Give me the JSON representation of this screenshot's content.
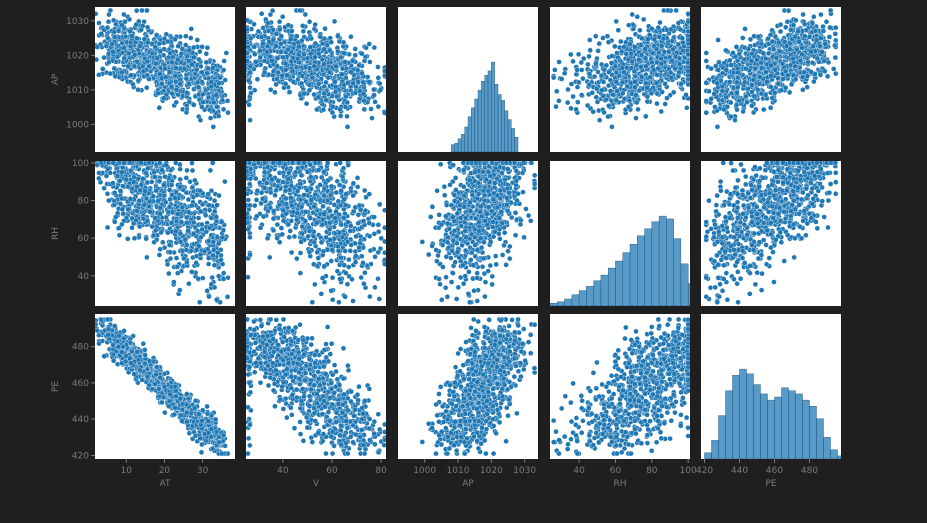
{
  "figure": {
    "background": "#1f1f1f",
    "panel_background": "#ffffff",
    "label_color": "#7a7a7a",
    "point_color": "#1f77b4",
    "point_edge": "#ffffff"
  },
  "chart_data": {
    "type": "scatter",
    "kind": "pairplot",
    "grid": false,
    "rows": [
      "AP",
      "RH",
      "PE"
    ],
    "cols": [
      "AT",
      "V",
      "AP",
      "RH",
      "PE"
    ],
    "ranges": {
      "AT": [
        1.8,
        38.5
      ],
      "V": [
        25,
        82
      ],
      "AP": [
        992,
        1034
      ],
      "RH": [
        24,
        101
      ],
      "PE": [
        418,
        498
      ]
    },
    "ticks": {
      "AT": [
        "10",
        "20",
        "30"
      ],
      "V": [
        "40",
        "60",
        "80"
      ],
      "AP": [
        "1000",
        "1010",
        "1020",
        "1030"
      ],
      "RH": [
        "40",
        "60",
        "80",
        "100"
      ],
      "PE": [
        "420",
        "440",
        "460",
        "480"
      ]
    },
    "ytick_labels": {
      "AP": [
        "1000",
        "1010",
        "1020",
        "1030"
      ],
      "RH": [
        "40",
        "60",
        "80",
        "100"
      ],
      "PE": [
        "420",
        "440",
        "460",
        "480"
      ]
    },
    "histograms": {
      "AP": {
        "bins": [
          1008,
          1009,
          1010,
          1011,
          1012,
          1013,
          1014,
          1015,
          1016,
          1017,
          1018,
          1019,
          1020,
          1021,
          1022,
          1023,
          1024,
          1025,
          1026,
          1027
        ],
        "counts": [
          5,
          6,
          9,
          12,
          17,
          24,
          30,
          36,
          42,
          48,
          52,
          55,
          61,
          46,
          39,
          35,
          28,
          22,
          16,
          10
        ]
      },
      "RH": {
        "bins": [
          24,
          28,
          32,
          36,
          40,
          44,
          48,
          52,
          56,
          60,
          64,
          68,
          72,
          76,
          80,
          84,
          88,
          92,
          96,
          100
        ],
        "counts": [
          2,
          3,
          5,
          8,
          11,
          14,
          18,
          22,
          27,
          32,
          38,
          44,
          50,
          55,
          60,
          64,
          62,
          48,
          30,
          16
        ]
      },
      "PE": {
        "bins": [
          420,
          424,
          428,
          432,
          436,
          440,
          444,
          448,
          452,
          456,
          460,
          464,
          468,
          472,
          476,
          480,
          484,
          488,
          492,
          496
        ],
        "counts": [
          4,
          12,
          28,
          44,
          54,
          58,
          55,
          48,
          42,
          38,
          40,
          46,
          44,
          42,
          38,
          34,
          26,
          14,
          6,
          2
        ]
      }
    }
  }
}
